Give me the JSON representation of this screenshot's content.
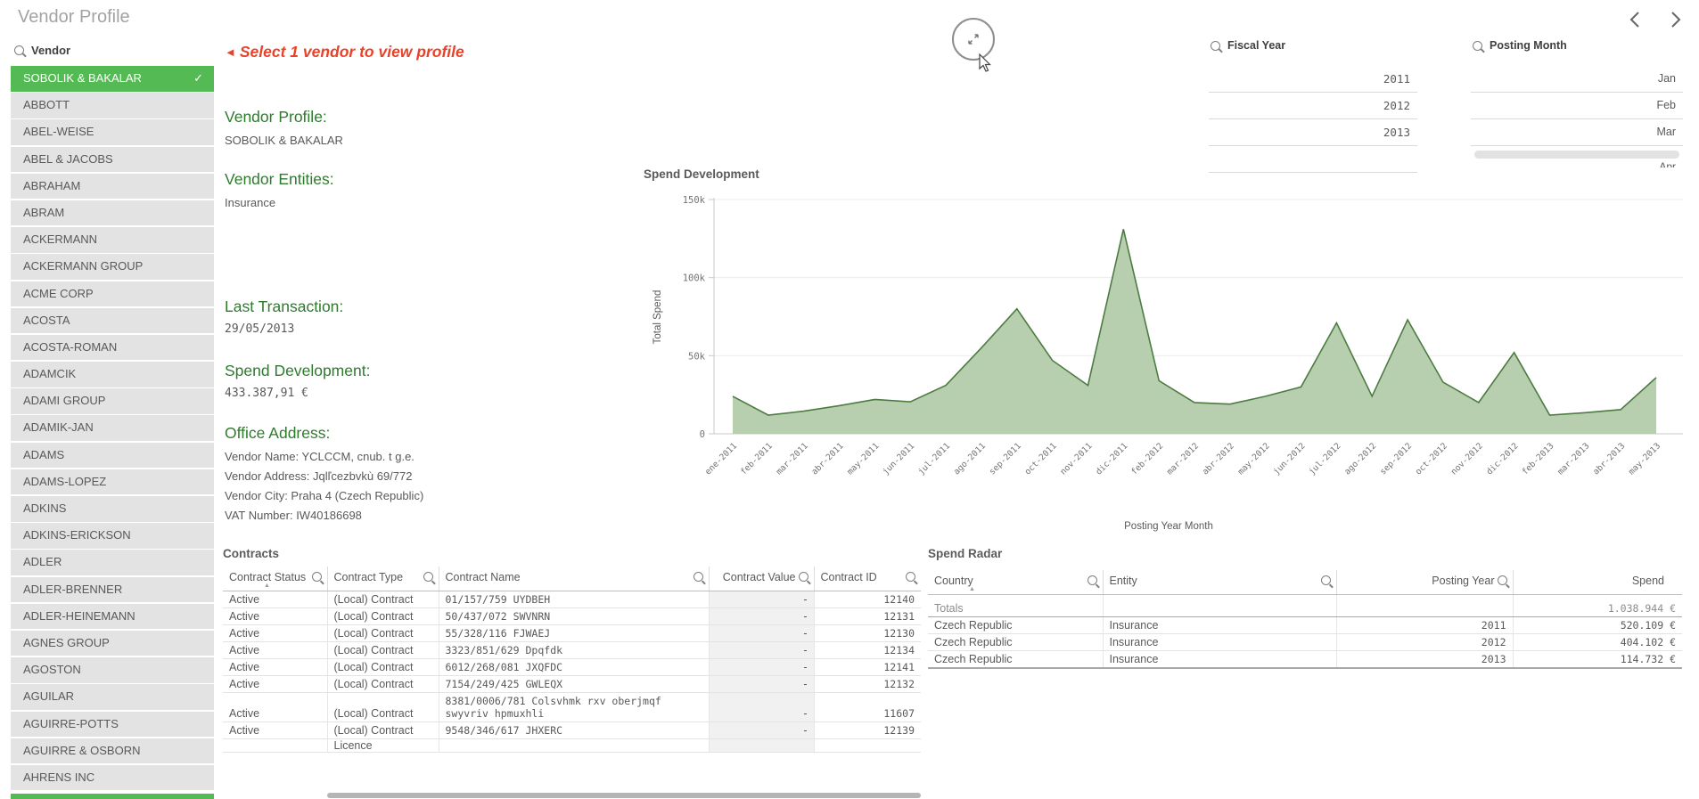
{
  "page": {
    "title": "Vendor Profile"
  },
  "annotation": {
    "arrow": "◄",
    "text": "Select 1 vendor to view profile"
  },
  "vendor_list": {
    "search_label": "Vendor",
    "selected": "SOBOLIK & BAKALAR",
    "items": [
      "SOBOLIK & BAKALAR",
      "ABBOTT",
      "ABEL-WEISE",
      "ABEL & JACOBS",
      "ABRAHAM",
      "ABRAM",
      "ACKERMANN",
      "ACKERMANN GROUP",
      "ACME CORP",
      "ACOSTA",
      "ACOSTA-ROMAN",
      "ADAMCIK",
      "ADAMI GROUP",
      "ADAMIK-JAN",
      "ADAMS",
      "ADAMS-LOPEZ",
      "ADKINS",
      "ADKINS-ERICKSON",
      "ADLER",
      "ADLER-BRENNER",
      "ADLER-HEINEMANN",
      "AGNES GROUP",
      "AGOSTON",
      "AGUILAR",
      "AGUIRRE-POTTS",
      "AGUIRRE & OSBORN",
      "AHRENS INC"
    ]
  },
  "profile": {
    "sections": [
      {
        "heading": "Vendor Profile:",
        "value": "SOBOLIK & BAKALAR",
        "mono": false
      },
      {
        "heading": "Vendor Entities:",
        "value": "Insurance",
        "mono": false
      },
      {
        "heading": "Last Transaction:",
        "value": "29/05/2013",
        "mono": true
      },
      {
        "heading": "Spend Development:",
        "value": "433.387,91 €",
        "mono": true
      }
    ],
    "office": {
      "heading": "Office Address:",
      "lines": [
        "Vendor Name: YCLCCM, cnub. t g.e.",
        "Vendor Address: Jqlľcezbvkù 69/772",
        "Vendor City: Praha 4 (Czech Republic)",
        "VAT Number: IW40186698"
      ]
    }
  },
  "filters": {
    "fiscal_year": {
      "label": "Fiscal Year",
      "values": [
        "2011",
        "2012",
        "2013"
      ]
    },
    "posting_month": {
      "label": "Posting Month",
      "values": [
        "Jan",
        "Feb",
        "Mar"
      ],
      "partial_value": "Apr"
    }
  },
  "chart_data": {
    "type": "area",
    "title": "Spend Development",
    "xlabel": "Posting Year Month",
    "ylabel": "Total Spend",
    "ylim": [
      0,
      150000
    ],
    "yticks": [
      0,
      50000,
      100000,
      150000
    ],
    "ytick_labels": [
      "0",
      "50k",
      "100k",
      "150k"
    ],
    "grid": true,
    "categories": [
      "ene-2011",
      "feb-2011",
      "mar-2011",
      "abr-2011",
      "may-2011",
      "jun-2011",
      "jul-2011",
      "ago-2011",
      "sep-2011",
      "oct-2011",
      "nov-2011",
      "dic-2011",
      "feb-2012",
      "mar-2012",
      "abr-2012",
      "may-2012",
      "jun-2012",
      "jul-2012",
      "ago-2012",
      "sep-2012",
      "oct-2012",
      "nov-2012",
      "dic-2012",
      "feb-2013",
      "mar-2013",
      "abr-2013",
      "may-2013"
    ],
    "values": [
      24000,
      12000,
      14500,
      18000,
      22000,
      20500,
      31000,
      55000,
      80000,
      47000,
      31000,
      131000,
      34000,
      20000,
      19000,
      24000,
      30000,
      71000,
      24000,
      73000,
      33000,
      20000,
      52000,
      12000,
      13500,
      15500,
      36000
    ],
    "line_color": "#4c7c41",
    "fill_color": "#b7cfae"
  },
  "contracts": {
    "title": "Contracts",
    "columns": [
      {
        "label": "Contract Status",
        "sorted": true,
        "align": "left"
      },
      {
        "label": "Contract Type",
        "sorted": false,
        "align": "left"
      },
      {
        "label": "Contract Name",
        "sorted": false,
        "align": "left"
      },
      {
        "label": "Contract Value",
        "sorted": false,
        "align": "right"
      },
      {
        "label": "Contract ID",
        "sorted": false,
        "align": "left"
      }
    ],
    "rows": [
      [
        "Active",
        "(Local) Contract",
        "01/157/759 UYDBEH",
        "-",
        "12140"
      ],
      [
        "Active",
        "(Local) Contract",
        "50/437/072 SWVNRN",
        "-",
        "12131"
      ],
      [
        "Active",
        "(Local) Contract",
        "55/328/116 FJWAEJ",
        "-",
        "12130"
      ],
      [
        "Active",
        "(Local) Contract",
        "3323/851/629 Dpqfdk",
        "-",
        "12134"
      ],
      [
        "Active",
        "(Local) Contract",
        "6012/268/081 JXQFDC",
        "-",
        "12141"
      ],
      [
        "Active",
        "(Local) Contract",
        "7154/249/425 GWLEQX",
        "-",
        "12132"
      ],
      [
        "Active",
        "(Local) Contract",
        "8381/0006/781 Colsvhmk rxv oberjmqf swyvriv hpmuxhli",
        "-",
        "11607"
      ],
      [
        "Active",
        "(Local) Contract",
        "9548/346/617 JHXERC",
        "-",
        "12139"
      ]
    ],
    "partial_row": [
      "",
      "Licence",
      "",
      "",
      ""
    ]
  },
  "spend_radar": {
    "title": "Spend Radar",
    "columns": [
      {
        "label": "Country",
        "sorted": true,
        "align": "left",
        "search": true
      },
      {
        "label": "Entity",
        "sorted": false,
        "align": "left",
        "search": true
      },
      {
        "label": "Posting Year",
        "sorted": false,
        "align": "right",
        "search": true
      },
      {
        "label": "Spend",
        "sorted": false,
        "align": "right",
        "search": false
      }
    ],
    "totals": [
      "Totals",
      "",
      "",
      "1.038.944 €"
    ],
    "rows": [
      [
        "Czech Republic",
        "Insurance",
        "2011",
        "520.109 €"
      ],
      [
        "Czech Republic",
        "Insurance",
        "2012",
        "404.102 €"
      ],
      [
        "Czech Republic",
        "Insurance",
        "2013",
        "114.732 €"
      ]
    ]
  }
}
